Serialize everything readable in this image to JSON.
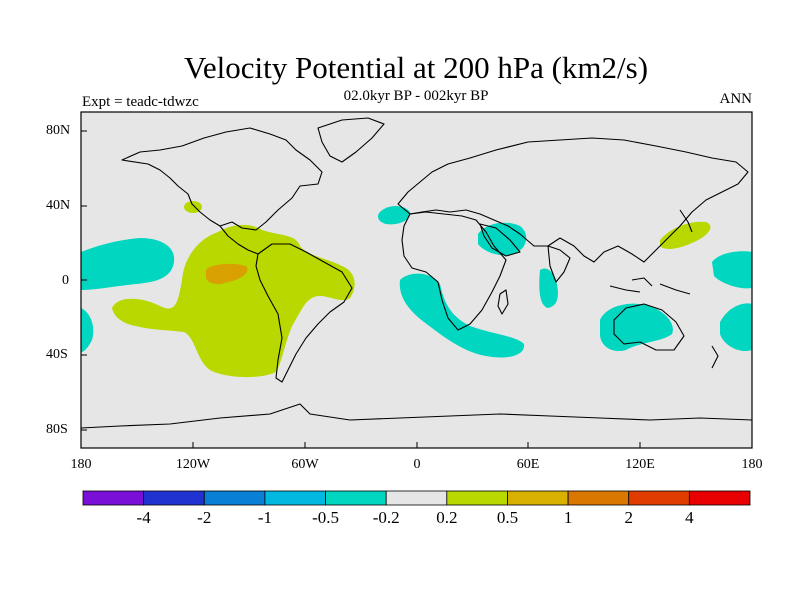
{
  "title": "Velocity Potential at 200 hPa (km2/s)",
  "subtitle": "02.0kyr BP - 002kyr BP",
  "experiment": "Expt = teadc-tdwzc",
  "season": "ANN",
  "lat_labels": [
    "80N",
    "40N",
    "0",
    "40S",
    "80S"
  ],
  "lon_labels": [
    "180",
    "120W",
    "60W",
    "0",
    "60E",
    "120E",
    "180"
  ],
  "colorbar": {
    "labels": [
      "-4",
      "-2",
      "-1",
      "-0.5",
      "-0.2",
      "0.2",
      "0.5",
      "1",
      "2",
      "4"
    ],
    "colors": [
      "#7a10d8",
      "#2033d0",
      "#0a7fd6",
      "#00b8e0",
      "#00d6c0",
      "#e6e6e6",
      "#b8d800",
      "#d8b000",
      "#d87800",
      "#e03c00",
      "#e80000"
    ]
  },
  "colors": {
    "background": "#e6e6e6",
    "pos_02_05": "#b8d800",
    "pos_05_1": "#d8b000",
    "neg_02_05": "#00d6c0"
  }
}
